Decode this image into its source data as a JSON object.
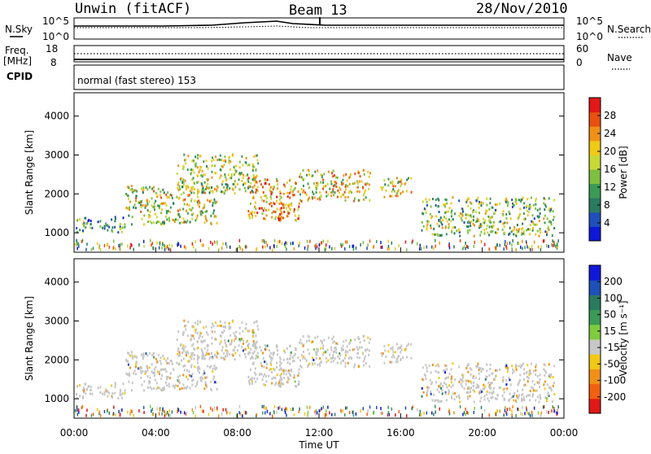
{
  "header": {
    "station": "Unwin (fitACF)",
    "beam": "Beam 13",
    "date": "28/Nov/2010"
  },
  "aux_panels": {
    "nsky_label": "N.Sky",
    "nsky_ticks": [
      "10^5",
      "10^0"
    ],
    "nsearch_label": "N.Search",
    "nsearch_ticks": [
      "10^5",
      "10^0"
    ],
    "freq_label": "Freq.",
    "freq_unit": "[MHz]",
    "freq_ticks": [
      "18",
      "8"
    ],
    "nave_label": "Nave",
    "nave_ticks": [
      "60",
      "0"
    ],
    "cpid_label": "CPID",
    "cpid_value": "normal (fast stereo) 153"
  },
  "colors": {
    "power_scale": [
      "#1018d8",
      "#1f4fb8",
      "#2a7a60",
      "#3b9a55",
      "#7fc040",
      "#c8d838",
      "#f0c818",
      "#f09018",
      "#e85010",
      "#e01818"
    ],
    "velocity_scale": [
      "#1018d8",
      "#1f4fb8",
      "#2a7a60",
      "#3b9a55",
      "#7fcc40",
      "#c8c8c8",
      "#f0c818",
      "#f09018",
      "#f06010",
      "#e01818"
    ],
    "ground_scatter": "#a0a0a0"
  },
  "chart_data": [
    {
      "type": "heatmap",
      "panel": "power",
      "ylabel": "Slant Range [km]",
      "yticks": [
        "1000",
        "2000",
        "3000",
        "4000"
      ],
      "ylim": [
        500,
        4600
      ],
      "xlim": [
        0,
        24
      ],
      "colorbar_label": "Power [dB]",
      "colorbar_ticks": [
        "4",
        "8",
        "12",
        "16",
        "20",
        "24",
        "28"
      ],
      "scatter_bands": [
        {
          "t0": 0.0,
          "t1": 2.5,
          "r0": 1000,
          "r1": 1400,
          "level": 0.35
        },
        {
          "t0": 2.5,
          "t1": 7.0,
          "r0": 1200,
          "r1": 2200,
          "level": 0.55
        },
        {
          "t0": 5.0,
          "t1": 9.0,
          "r0": 2000,
          "r1": 3000,
          "level": 0.5
        },
        {
          "t0": 8.5,
          "t1": 11.0,
          "r0": 1300,
          "r1": 2400,
          "level": 0.7
        },
        {
          "t0": 10.0,
          "t1": 10.8,
          "r0": 1400,
          "r1": 1800,
          "level": 0.9
        },
        {
          "t0": 11.0,
          "t1": 14.5,
          "r0": 1800,
          "r1": 2600,
          "level": 0.6
        },
        {
          "t0": 15.0,
          "t1": 16.5,
          "r0": 1900,
          "r1": 2400,
          "level": 0.55
        },
        {
          "t0": 17.0,
          "t1": 23.5,
          "r0": 900,
          "r1": 1900,
          "level": 0.45
        }
      ]
    },
    {
      "type": "heatmap",
      "panel": "velocity",
      "ylabel": "Slant Range [km]",
      "yticks": [
        "1000",
        "2000",
        "3000",
        "4000"
      ],
      "ylim": [
        500,
        4600
      ],
      "xlim": [
        0,
        24
      ],
      "xticks": [
        "00:00",
        "04:00",
        "08:00",
        "12:00",
        "16:00",
        "20:00",
        "00:00"
      ],
      "xlabel": "Time UT",
      "colorbar_label": "Velocity [m s⁻¹]",
      "colorbar_ticks": [
        "200",
        "100",
        "50",
        "15",
        "-15",
        "-50",
        "-100",
        "-200"
      ]
    }
  ]
}
